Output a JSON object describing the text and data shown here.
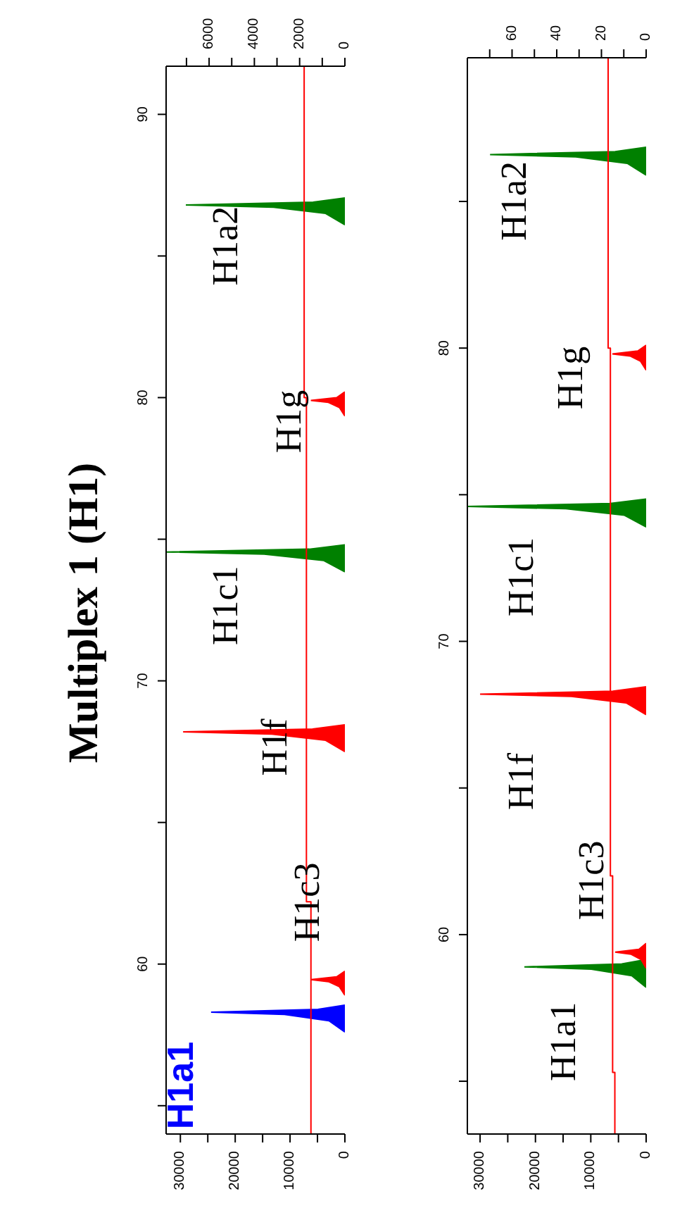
{
  "chart_data": [
    {
      "type": "area",
      "title": "Multiplex 1 (H1)",
      "ylim": [
        54,
        91.7
      ],
      "yticks": [
        {
          "value": 55,
          "label": null
        },
        60,
        {
          "value": 65,
          "label": null
        },
        70,
        {
          "value": 75,
          "label": null
        },
        80,
        {
          "value": 85,
          "label": null
        },
        90
      ],
      "xlim": [
        32600,
        0
      ],
      "xticks": [
        0,
        {
          "value": 5000,
          "label": null
        },
        10000,
        {
          "value": 15000,
          "label": null
        },
        20000,
        {
          "value": 25000,
          "label": null
        },
        30000
      ],
      "x2lim": [
        7900,
        0
      ],
      "x2ticks": [
        0,
        {
          "value": 1000,
          "label": null
        },
        2000,
        {
          "value": 3000,
          "label": null
        },
        4000,
        {
          "value": 5000,
          "label": null
        },
        6000,
        {
          "value": 7000,
          "label": null
        }
      ],
      "annotations": [
        "H1a1",
        "H1c3",
        "H1f",
        "H1c1",
        "H1g",
        "H1a2"
      ],
      "series": [
        {
          "color": "#0000ff",
          "values": [
            57.6,
            58.0,
            58.22,
            58.3,
            58.4,
            58.55
          ],
          "x": [
            0,
            2900,
            11000,
            24400,
            4900,
            0
          ]
        },
        {
          "color": "#ff0000",
          "values": [
            58.9,
            59.2,
            59.38,
            59.45,
            59.55,
            59.75
          ],
          "x": [
            0,
            1000,
            3000,
            6200,
            1500,
            0
          ]
        },
        {
          "color": "#ff0000",
          "values": [
            67.5,
            67.9,
            68.12,
            68.2,
            68.3,
            68.45
          ],
          "x": [
            0,
            3500,
            13300,
            29500,
            5900,
            0
          ]
        },
        {
          "color": "#008000",
          "values": [
            73.85,
            74.25,
            74.47,
            74.55,
            74.65,
            74.8
          ],
          "x": [
            0,
            3900,
            14700,
            32600,
            6500,
            0
          ]
        },
        {
          "color": "#ff0000",
          "values": [
            79.35,
            79.65,
            79.83,
            79.9,
            80.0,
            80.2
          ],
          "x": [
            0,
            1000,
            3000,
            6200,
            1500,
            0
          ]
        },
        {
          "color": "#008000",
          "values": [
            86.1,
            86.5,
            86.72,
            86.8,
            86.9,
            87.05
          ],
          "x": [
            0,
            3500,
            13000,
            29000,
            5800,
            0
          ]
        },
        {
          "type": "line",
          "axis": "x2",
          "color": "#ff0000",
          "values": [
            54,
            62.2,
            62.2,
            80,
            80,
            91.7
          ],
          "x": [
            1500,
            1500,
            1700,
            1700,
            1800,
            1800
          ]
        }
      ]
    },
    {
      "type": "area",
      "ylim": [
        53.2,
        89.9
      ],
      "yticks": [
        {
          "value": 55,
          "label": null
        },
        60,
        {
          "value": 65,
          "label": null
        },
        70,
        {
          "value": 75,
          "label": null
        },
        80,
        {
          "value": 85,
          "label": null
        }
      ],
      "xlim": [
        32300,
        0
      ],
      "xticks": [
        0,
        {
          "value": 5000,
          "label": null
        },
        10000,
        {
          "value": 15000,
          "label": null
        },
        20000,
        {
          "value": 25000,
          "label": null
        },
        30000
      ],
      "x2lim": [
        80,
        0
      ],
      "x2ticks": [
        0,
        {
          "value": 10,
          "label": null
        },
        20,
        {
          "value": 30,
          "label": null
        },
        40,
        {
          "value": 50,
          "label": null
        },
        60,
        {
          "value": 70,
          "label": null
        }
      ],
      "annotations": [
        "H1a1",
        "H1c3",
        "H1f",
        "H1c1",
        "H1g",
        "H1a2"
      ],
      "series": [
        {
          "color": "#008000",
          "values": [
            58.2,
            58.6,
            58.82,
            58.9,
            59.0,
            59.15
          ],
          "x": [
            0,
            2600,
            9900,
            22000,
            4400,
            0
          ]
        },
        {
          "color": "#ff0000",
          "values": [
            58.85,
            59.15,
            59.33,
            59.4,
            59.5,
            59.7
          ],
          "x": [
            0,
            900,
            2700,
            5600,
            1300,
            0
          ]
        },
        {
          "color": "#ff0000",
          "values": [
            67.5,
            67.9,
            68.12,
            68.2,
            68.3,
            68.45
          ],
          "x": [
            0,
            3600,
            13500,
            30000,
            6000,
            0
          ]
        },
        {
          "color": "#008000",
          "values": [
            73.9,
            74.3,
            74.52,
            74.6,
            74.7,
            74.85
          ],
          "x": [
            0,
            3900,
            14500,
            32300,
            6500,
            0
          ]
        },
        {
          "color": "#ff0000",
          "values": [
            79.25,
            79.55,
            79.73,
            79.8,
            79.9,
            80.1
          ],
          "x": [
            0,
            1000,
            2900,
            6100,
            1500,
            0
          ]
        },
        {
          "color": "#008000",
          "values": [
            85.9,
            86.3,
            86.52,
            86.6,
            86.7,
            86.85
          ],
          "x": [
            0,
            3400,
            12700,
            28200,
            5600,
            0
          ]
        },
        {
          "type": "line",
          "axis": "x2",
          "color": "#ff0000",
          "values": [
            53.2,
            55.3,
            55.3,
            62,
            62,
            80,
            80,
            89.9
          ],
          "x": [
            14,
            14,
            15,
            15,
            16,
            16,
            17,
            17
          ]
        }
      ]
    }
  ]
}
